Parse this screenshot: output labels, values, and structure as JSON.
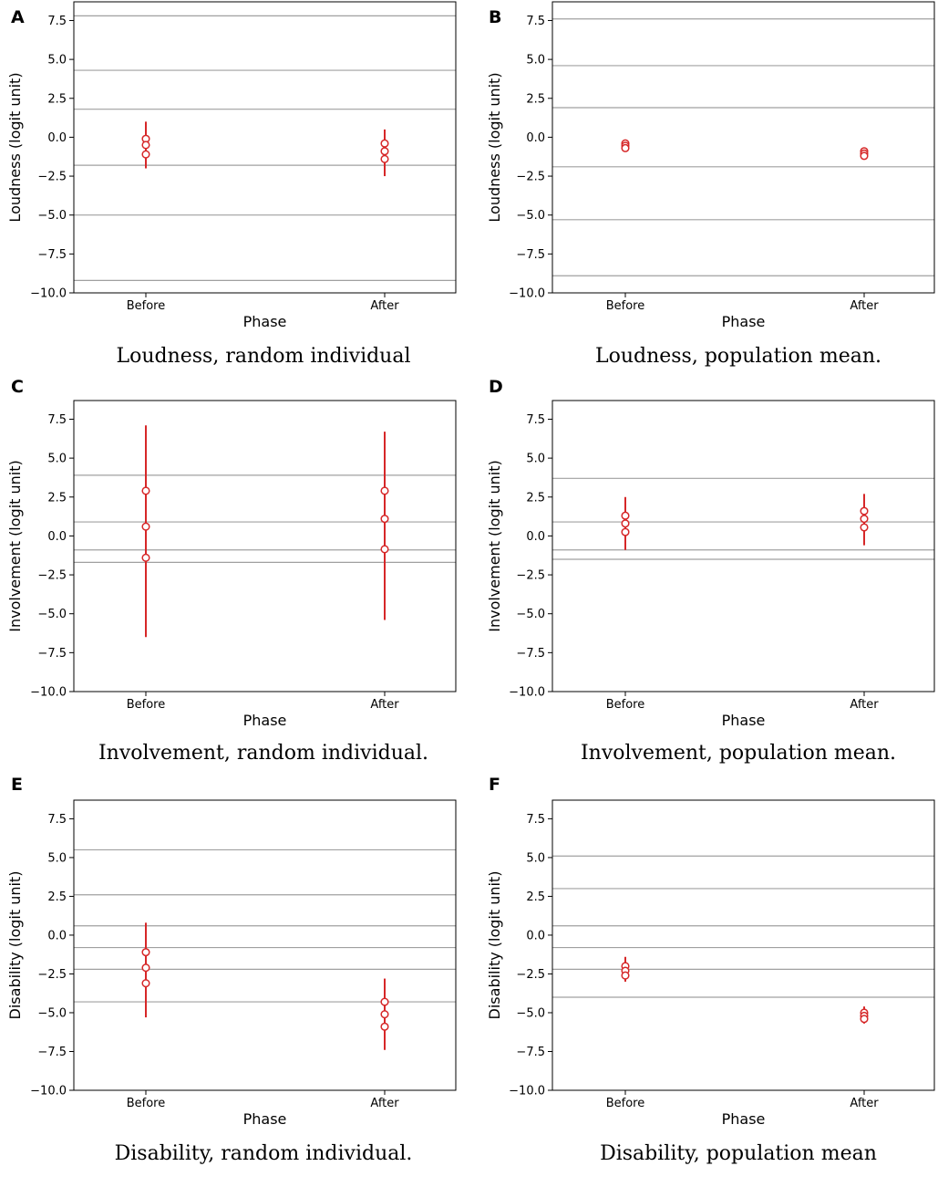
{
  "chart_data": [
    {
      "panel_letter": "A",
      "type": "scatter",
      "title": "Loudness, random individual",
      "xlabel": "Phase",
      "ylabel": "Loudness (logit unit)",
      "categories": [
        "Before",
        "After"
      ],
      "ylim": [
        -10.0,
        8.7
      ],
      "yticks": [
        "7.5",
        "5.0",
        "2.5",
        "0.0",
        "−2.5",
        "−5.0",
        "−7.5",
        "−10.0"
      ],
      "ytick_values": [
        7.5,
        5.0,
        2.5,
        0.0,
        -2.5,
        -5.0,
        -7.5,
        -10.0
      ],
      "thresholds": [
        7.8,
        4.3,
        1.8,
        -1.8,
        -5.0,
        -9.2
      ],
      "series": [
        {
          "category": "Before",
          "points": [
            -0.1,
            -0.5,
            -1.1
          ],
          "range": [
            -2.0,
            1.0
          ]
        },
        {
          "category": "After",
          "points": [
            -0.4,
            -0.9,
            -1.4
          ],
          "range": [
            -2.5,
            0.5
          ]
        }
      ]
    },
    {
      "panel_letter": "B",
      "type": "scatter",
      "title": "Loudness, population mean.",
      "xlabel": "Phase",
      "ylabel": "Loudness (logit unit)",
      "categories": [
        "Before",
        "After"
      ],
      "ylim": [
        -10.0,
        8.7
      ],
      "yticks": [
        "7.5",
        "5.0",
        "2.5",
        "0.0",
        "−2.5",
        "−5.0",
        "−7.5",
        "−10.0"
      ],
      "ytick_values": [
        7.5,
        5.0,
        2.5,
        0.0,
        -2.5,
        -5.0,
        -7.5,
        -10.0
      ],
      "thresholds": [
        7.6,
        4.6,
        1.9,
        -1.9,
        -5.3,
        -8.9
      ],
      "series": [
        {
          "category": "Before",
          "points": [
            -0.4,
            -0.55,
            -0.7
          ],
          "range": [
            -0.85,
            -0.25
          ]
        },
        {
          "category": "After",
          "points": [
            -0.9,
            -1.05,
            -1.2
          ],
          "range": [
            -1.35,
            -0.75
          ]
        }
      ]
    },
    {
      "panel_letter": "C",
      "type": "scatter",
      "title": "Involvement, random individual.",
      "xlabel": "Phase",
      "ylabel": "Involvement (logit unit)",
      "categories": [
        "Before",
        "After"
      ],
      "ylim": [
        -10.0,
        8.7
      ],
      "yticks": [
        "7.5",
        "5.0",
        "2.5",
        "0.0",
        "−2.5",
        "−5.0",
        "−7.5",
        "−10.0"
      ],
      "ytick_values": [
        7.5,
        5.0,
        2.5,
        0.0,
        -2.5,
        -5.0,
        -7.5,
        -10.0
      ],
      "thresholds": [
        3.9,
        0.9,
        -0.9,
        -1.7
      ],
      "series": [
        {
          "category": "Before",
          "points": [
            2.9,
            0.6,
            -1.4
          ],
          "range": [
            -6.5,
            7.1
          ]
        },
        {
          "category": "After",
          "points": [
            2.9,
            1.1,
            -0.85
          ],
          "range": [
            -5.4,
            6.7
          ]
        }
      ]
    },
    {
      "panel_letter": "D",
      "type": "scatter",
      "title": "Involvement, population mean.",
      "xlabel": "Phase",
      "ylabel": "Involvement (logit unit)",
      "categories": [
        "Before",
        "After"
      ],
      "ylim": [
        -10.0,
        8.7
      ],
      "yticks": [
        "7.5",
        "5.0",
        "2.5",
        "0.0",
        "−2.5",
        "−5.0",
        "−7.5",
        "−10.0"
      ],
      "ytick_values": [
        7.5,
        5.0,
        2.5,
        0.0,
        -2.5,
        -5.0,
        -7.5,
        -10.0
      ],
      "thresholds": [
        3.7,
        0.9,
        -0.9,
        -1.5
      ],
      "series": [
        {
          "category": "Before",
          "points": [
            1.3,
            0.8,
            0.25
          ],
          "range": [
            -0.9,
            2.5
          ]
        },
        {
          "category": "After",
          "points": [
            1.6,
            1.1,
            0.55
          ],
          "range": [
            -0.6,
            2.7
          ]
        }
      ]
    },
    {
      "panel_letter": "E",
      "type": "scatter",
      "title": "Disability, random individual.",
      "xlabel": "Phase",
      "ylabel": "Disability (logit unit)",
      "categories": [
        "Before",
        "After"
      ],
      "ylim": [
        -10.0,
        8.7
      ],
      "yticks": [
        "7.5",
        "5.0",
        "2.5",
        "0.0",
        "−2.5",
        "−5.0",
        "−7.5",
        "−10.0"
      ],
      "ytick_values": [
        7.5,
        5.0,
        2.5,
        0.0,
        -2.5,
        -5.0,
        -7.5,
        -10.0
      ],
      "thresholds": [
        5.5,
        2.6,
        0.6,
        -0.8,
        -2.2,
        -4.3
      ],
      "series": [
        {
          "category": "Before",
          "points": [
            -1.1,
            -2.1,
            -3.1
          ],
          "range": [
            -5.3,
            0.8
          ]
        },
        {
          "category": "After",
          "points": [
            -4.3,
            -5.1,
            -5.9
          ],
          "range": [
            -7.4,
            -2.8
          ]
        }
      ]
    },
    {
      "panel_letter": "F",
      "type": "scatter",
      "title": "Disability, population mean",
      "xlabel": "Phase",
      "ylabel": "Disability (logit unit)",
      "categories": [
        "Before",
        "After"
      ],
      "ylim": [
        -10.0,
        8.7
      ],
      "yticks": [
        "7.5",
        "5.0",
        "2.5",
        "0.0",
        "−2.5",
        "−5.0",
        "−7.5",
        "−10.0"
      ],
      "ytick_values": [
        7.5,
        5.0,
        2.5,
        0.0,
        -2.5,
        -5.0,
        -7.5,
        -10.0
      ],
      "thresholds": [
        5.1,
        3.0,
        0.6,
        -0.8,
        -2.2,
        -4.0
      ],
      "series": [
        {
          "category": "Before",
          "points": [
            -2.0,
            -2.3,
            -2.6
          ],
          "range": [
            -3.0,
            -1.4
          ]
        },
        {
          "category": "After",
          "points": [
            -5.0,
            -5.2,
            -5.4
          ],
          "range": [
            -5.7,
            -4.6
          ]
        }
      ]
    }
  ],
  "colors": {
    "marker": "#d62728",
    "threshold_line": "#a0a0a0",
    "axis": "#000000",
    "background": "#ffffff"
  }
}
